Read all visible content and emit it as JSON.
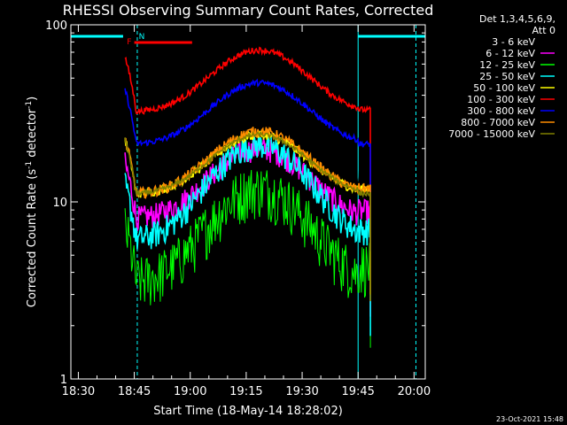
{
  "chart_data": {
    "type": "line",
    "title": "RHESSI Observing Summary Count Rates, Corrected",
    "xlabel": "Start Time (18-May-14 18:28:02)",
    "ylabel_pre": "Corrected Count Rate (s",
    "ylabel_sup": "-1",
    "ylabel_post": " detector",
    "ylabel_end": ")",
    "ylog": true,
    "ylim": [
      1,
      100
    ],
    "xlim_min": [
      28.0,
      123.0
    ],
    "x_ticks": [
      {
        "min": 30,
        "label": "18:30"
      },
      {
        "min": 45,
        "label": "18:45"
      },
      {
        "min": 60,
        "label": "19:00"
      },
      {
        "min": 75,
        "label": "19:15"
      },
      {
        "min": 90,
        "label": "19:30"
      },
      {
        "min": 105,
        "label": "19:45"
      },
      {
        "min": 120,
        "label": "20:00"
      }
    ],
    "y_ticks": [
      {
        "val": 1,
        "label": "1"
      },
      {
        "val": 10,
        "label": "10"
      },
      {
        "val": 100,
        "label": "100"
      }
    ],
    "legend_header": [
      "Det 1,3,4,5,6,9,",
      "Att 0"
    ],
    "series": [
      {
        "name": "3 - 6 keV",
        "color": "#000000",
        "base": 12,
        "peak": 28,
        "noise": 0.18,
        "end": 17
      },
      {
        "name": "6 - 12 keV",
        "color": "#ff00ff",
        "base": 8,
        "peak": 20,
        "noise": 0.16,
        "end": 9
      },
      {
        "name": "12 - 25 keV",
        "color": "#00ff00",
        "base": 3.5,
        "peak": 12,
        "noise": 0.35,
        "end": 4.5
      },
      {
        "name": "25 - 50 keV",
        "color": "#00ffff",
        "base": 6,
        "peak": 21,
        "noise": 0.18,
        "end": 7
      },
      {
        "name": "50 - 100 keV",
        "color": "#ffff00",
        "base": 11,
        "peak": 24,
        "noise": 0.06,
        "end": 12
      },
      {
        "name": "100 - 300 keV",
        "color": "#ff0000",
        "base": 32,
        "peak": 72,
        "noise": 0.04,
        "end": 33
      },
      {
        "name": "300 - 800 keV",
        "color": "#0000ff",
        "base": 21,
        "peak": 47,
        "noise": 0.04,
        "end": 21
      },
      {
        "name": "800 - 7000 keV",
        "color": "#ff8c00",
        "base": 11,
        "peak": 25,
        "noise": 0.07,
        "end": 12
      },
      {
        "name": "7000 - 15000 keV",
        "color": "#808000",
        "base": 11,
        "peak": 24,
        "noise": 0.03,
        "end": 11
      }
    ],
    "data_start_min": 42.5,
    "data_end_min": 108.3,
    "peak_center_min": 78.5,
    "night_intervals": [
      [
        28.0,
        42.0
      ],
      [
        105.0,
        123.0
      ]
    ],
    "night_color": "#00ffff",
    "flare_flag": {
      "label": "F",
      "start": 43.5,
      "end": 60.5,
      "color": "#ff0000"
    },
    "saa_flag": {
      "label": "N",
      "min": 45.5
    },
    "saa_lines_min": [
      45.8,
      120.5
    ],
    "timestamp": "23-Oct-2021 15:48"
  }
}
